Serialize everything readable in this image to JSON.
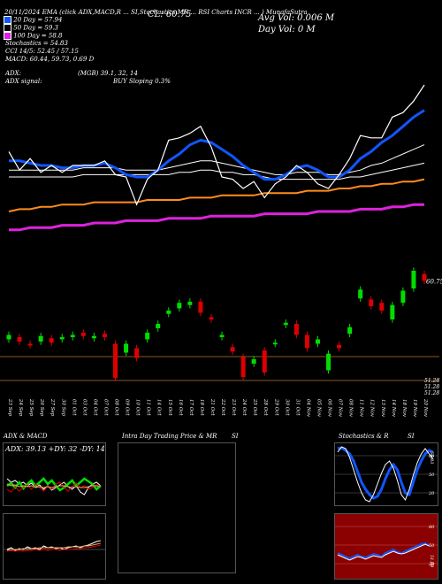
{
  "chart_data": {
    "type": "candlestick",
    "header": {
      "top_line": "20/11/2024 EMA (click ADX,MACD,R ... SI,Stochastics,MR ... RSI Charts INCR ... ) MunafaSutra",
      "ma20": "20 Day = 57.94",
      "ma50": "50 Day = 59.3",
      "ma100": "100 Day = 58.8",
      "stochastics": "Stochastics = 54.83",
      "stoch_detail": "CCI 14/5: 52.45 / 57.15",
      "macd": "MACD: 60.44, 59.73, 0.69 D",
      "cl": "CL: 60.75",
      "avg_vol": "Avg Vol: 0.006  M",
      "day_vol": "Day Vol: 0   M",
      "adx": "ADX:",
      "adx_mid": "(MGB) 39.1, 32, 14",
      "adx_signal": "ADX  signal:",
      "buy_signal": "BUY Sloping 0.3%"
    },
    "price_scale_label": "60.75",
    "low_labels": [
      "51.28",
      "51.28",
      "51.28"
    ],
    "dates": [
      "23 Sep",
      "24 Sep",
      "25 Sep",
      "26 Sep",
      "27 Sep",
      "30 Sep",
      "01 Oct",
      "03 Oct",
      "04 Oct",
      "07 Oct",
      "08 Oct",
      "09 Oct",
      "10 Oct",
      "11 Oct",
      "14 Oct",
      "15 Oct",
      "16 Oct",
      "17 Oct",
      "18 Oct",
      "21 Oct",
      "22 Oct",
      "23 Oct",
      "24 Oct",
      "25 Oct",
      "28 Oct",
      "29 Oct",
      "30 Oct",
      "31 Oct",
      "04 Nov",
      "05 Nov",
      "06 Nov",
      "07 Nov",
      "08 Nov",
      "11 Nov",
      "12 Nov",
      "13 Nov",
      "14 Nov",
      "18 Nov",
      "19 Nov",
      "20 Nov"
    ],
    "candles": [
      {
        "o": 55.0,
        "c": 55.4
      },
      {
        "o": 55.2,
        "c": 54.8
      },
      {
        "o": 54.6,
        "c": 54.5
      },
      {
        "o": 54.8,
        "c": 55.3
      },
      {
        "o": 55.1,
        "c": 54.7
      },
      {
        "o": 55.0,
        "c": 55.2
      },
      {
        "o": 55.2,
        "c": 55.4
      },
      {
        "o": 55.6,
        "c": 55.3
      },
      {
        "o": 55.1,
        "c": 55.3
      },
      {
        "o": 55.5,
        "c": 55.2
      },
      {
        "o": 54.6,
        "c": 51.5
      },
      {
        "o": 53.8,
        "c": 54.6
      },
      {
        "o": 54.2,
        "c": 53.3
      },
      {
        "o": 55.0,
        "c": 55.6
      },
      {
        "o": 56.0,
        "c": 56.4
      },
      {
        "o": 57.3,
        "c": 57.6
      },
      {
        "o": 57.8,
        "c": 58.3
      },
      {
        "o": 58.1,
        "c": 58.4
      },
      {
        "o": 58.4,
        "c": 57.4
      },
      {
        "o": 57.0,
        "c": 56.8
      },
      {
        "o": 55.2,
        "c": 55.4
      },
      {
        "o": 54.3,
        "c": 53.9
      },
      {
        "o": 53.4,
        "c": 51.6
      },
      {
        "o": 52.8,
        "c": 53.2
      },
      {
        "o": 54.0,
        "c": 52.0
      },
      {
        "o": 54.6,
        "c": 54.7
      },
      {
        "o": 56.3,
        "c": 56.5
      },
      {
        "o": 56.4,
        "c": 55.4
      },
      {
        "o": 55.4,
        "c": 54.2
      },
      {
        "o": 54.6,
        "c": 55.0
      },
      {
        "o": 52.2,
        "c": 53.7
      },
      {
        "o": 54.5,
        "c": 54.2
      },
      {
        "o": 55.5,
        "c": 56.1
      },
      {
        "o": 58.7,
        "c": 59.5
      },
      {
        "o": 58.6,
        "c": 58.0
      },
      {
        "o": 58.3,
        "c": 57.6
      },
      {
        "o": 56.8,
        "c": 58.1
      },
      {
        "o": 58.3,
        "c": 59.4
      },
      {
        "o": 59.6,
        "c": 61.2
      },
      {
        "o": 60.9,
        "c": 60.3
      }
    ],
    "price_lines": {
      "close": [
        59.6,
        58.8,
        59.3,
        58.7,
        59.0,
        58.7,
        59.0,
        59.0,
        59.0,
        59.2,
        58.6,
        58.5,
        57.3,
        58.4,
        58.8,
        60.1,
        60.2,
        60.4,
        60.7,
        59.8,
        58.5,
        58.4,
        58.0,
        58.3,
        57.6,
        58.2,
        58.5,
        59.0,
        58.7,
        58.2,
        58.0,
        58.6,
        59.3,
        60.3,
        60.2,
        60.2,
        61.1,
        61.3,
        61.8,
        62.5
      ],
      "ema20": [
        59.2,
        59.2,
        59.1,
        59.0,
        59.0,
        58.9,
        58.9,
        59.0,
        59.0,
        59.1,
        58.9,
        58.6,
        58.5,
        58.5,
        58.8,
        59.2,
        59.5,
        59.9,
        60.1,
        60.0,
        59.7,
        59.4,
        59.0,
        58.7,
        58.4,
        58.4,
        58.6,
        58.9,
        59.0,
        58.8,
        58.5,
        58.5,
        58.8,
        59.3,
        59.6,
        60.0,
        60.3,
        60.7,
        61.1,
        61.4
      ],
      "ema50": [
        58.8,
        58.8,
        58.8,
        58.8,
        58.8,
        58.8,
        58.8,
        58.9,
        58.9,
        58.9,
        58.9,
        58.8,
        58.8,
        58.8,
        58.8,
        58.9,
        59.0,
        59.1,
        59.2,
        59.2,
        59.1,
        59.0,
        58.9,
        58.8,
        58.7,
        58.6,
        58.6,
        58.7,
        58.7,
        58.7,
        58.6,
        58.6,
        58.7,
        58.8,
        59.0,
        59.1,
        59.3,
        59.5,
        59.7,
        59.9
      ],
      "ema100": [
        58.5,
        58.5,
        58.5,
        58.5,
        58.5,
        58.5,
        58.5,
        58.6,
        58.6,
        58.6,
        58.6,
        58.6,
        58.6,
        58.6,
        58.6,
        58.6,
        58.7,
        58.7,
        58.8,
        58.8,
        58.7,
        58.7,
        58.6,
        58.6,
        58.5,
        58.4,
        58.4,
        58.4,
        58.4,
        58.4,
        58.4,
        58.4,
        58.5,
        58.5,
        58.6,
        58.7,
        58.8,
        58.9,
        59.0,
        59.1
      ],
      "ema200": [
        57.0,
        57.1,
        57.1,
        57.2,
        57.2,
        57.3,
        57.3,
        57.3,
        57.4,
        57.4,
        57.4,
        57.4,
        57.4,
        57.5,
        57.5,
        57.5,
        57.5,
        57.6,
        57.6,
        57.6,
        57.7,
        57.7,
        57.7,
        57.7,
        57.8,
        57.8,
        57.8,
        57.8,
        57.9,
        57.9,
        57.9,
        58.0,
        58.0,
        58.1,
        58.1,
        58.2,
        58.2,
        58.3,
        58.3,
        58.4
      ],
      "ema300": [
        56.2,
        56.2,
        56.3,
        56.3,
        56.3,
        56.4,
        56.4,
        56.4,
        56.5,
        56.5,
        56.5,
        56.6,
        56.6,
        56.6,
        56.6,
        56.7,
        56.7,
        56.7,
        56.7,
        56.8,
        56.8,
        56.8,
        56.8,
        56.8,
        56.9,
        56.9,
        56.9,
        56.9,
        56.9,
        57.0,
        57.0,
        57.0,
        57.0,
        57.1,
        57.1,
        57.1,
        57.2,
        57.2,
        57.3,
        57.3
      ]
    },
    "panels": {
      "adx_title": "ADX  & MACD",
      "adx_readout": "ADX: 39.13  +DY: 32  -DY: 14",
      "intraday_title": "Intra  Day Trading Price  & MR",
      "intraday_si": "SI",
      "stoch_title": "Stochastics & R",
      "stoch_si": "SI",
      "stoch_ticks": [
        "80",
        "50",
        "20"
      ],
      "rsi_ticks": [
        "80",
        "50",
        "20"
      ],
      "stoch_right_label": "54.83",
      "rsi_right_label": "51.08"
    },
    "colors": {
      "up": "#00dd00",
      "down": "#dd0000",
      "ema20": "#1155ff",
      "ema200": "#ff8c1a",
      "ema300": "#dd22dd",
      "rsi_bg": "#8b0000"
    }
  }
}
